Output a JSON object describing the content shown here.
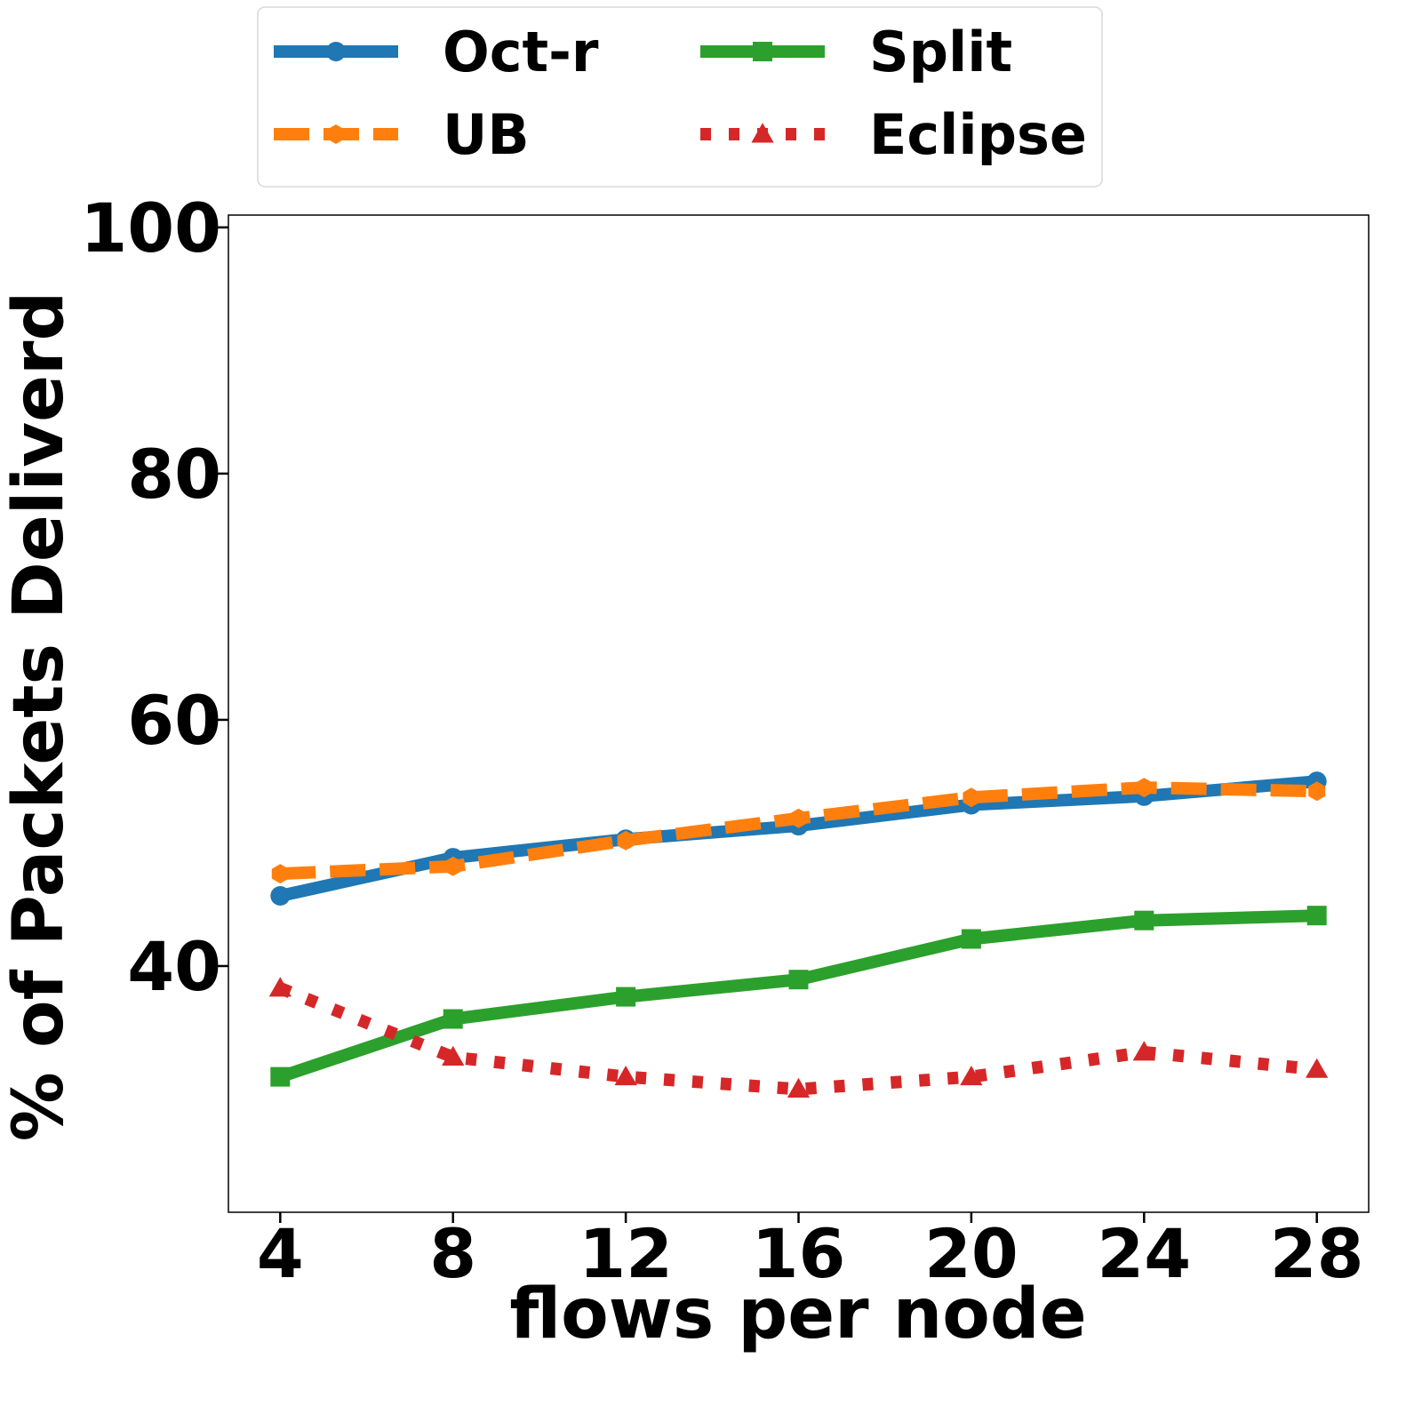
{
  "chart_data": {
    "type": "line",
    "x": [
      4,
      8,
      12,
      16,
      20,
      24,
      28
    ],
    "xticks": [
      "4",
      "8",
      "12",
      "16",
      "20",
      "24",
      "28"
    ],
    "yticks": [
      "40",
      "60",
      "80",
      "100"
    ],
    "ytick_values": [
      40,
      60,
      80,
      100
    ],
    "xlabel": "flows per node",
    "ylabel": "% of Packets Deliverd",
    "xlim": [
      2.8,
      29.2
    ],
    "ylim": [
      20,
      101
    ],
    "grid": false,
    "legend_position": "top",
    "series": [
      {
        "name": "Oct-r",
        "values": [
          45.7,
          48.8,
          50.3,
          51.4,
          53.1,
          53.8,
          55.0
        ],
        "color": "#1f77b4",
        "marker": "circle",
        "dash": "solid"
      },
      {
        "name": "UB",
        "values": [
          47.5,
          48.1,
          50.2,
          52.0,
          53.7,
          54.5,
          54.2
        ],
        "color": "#ff7f0e",
        "marker": "hexagon",
        "dash": "dashed"
      },
      {
        "name": "Split",
        "values": [
          31.0,
          35.7,
          37.5,
          38.9,
          42.2,
          43.7,
          44.1
        ],
        "color": "#2ca02c",
        "marker": "square",
        "dash": "solid"
      },
      {
        "name": "Eclipse",
        "values": [
          38.2,
          32.6,
          31.0,
          30.0,
          31.0,
          33.0,
          31.6
        ],
        "color": "#d62728",
        "marker": "triangle",
        "dash": "dotted"
      }
    ]
  }
}
